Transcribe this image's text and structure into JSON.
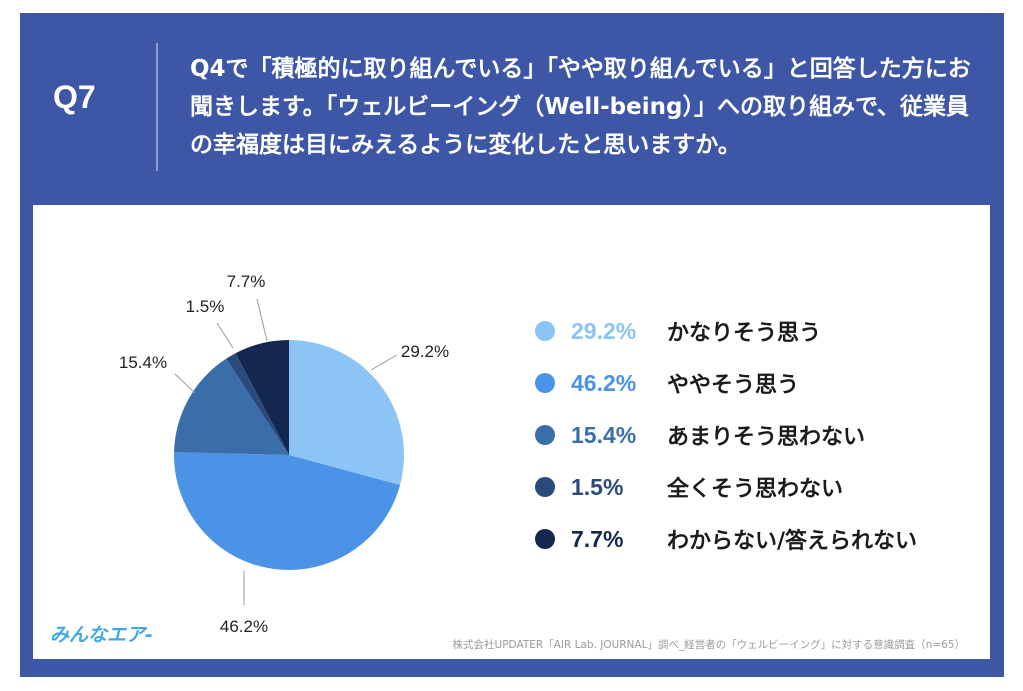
{
  "header": {
    "q_number": "Q7",
    "question": "Q4で「積極的に取り組んでいる」「やや取り組んでいる」と回答した方にお聞きします。「ウェルビーイング（Well-being）」への取り組みで、従業員の幸福度は目にみえるように変化したと思いますか。"
  },
  "chart_data": {
    "type": "pie",
    "start_angle": "12 o'clock",
    "direction": "clockwise",
    "slices": [
      {
        "label": "かなりそう思う",
        "value": 29.2,
        "display": "29.2%",
        "color": "#8cc4f5"
      },
      {
        "label": "ややそう思う",
        "value": 46.2,
        "display": "46.2%",
        "color": "#4a93e6"
      },
      {
        "label": "あまりそう思わない",
        "value": 15.4,
        "display": "15.4%",
        "color": "#3a6ea9"
      },
      {
        "label": "全くそう思わない",
        "value": 1.5,
        "display": "1.5%",
        "color": "#2b4a7c"
      },
      {
        "label": "わからない/答えられない",
        "value": 7.7,
        "display": "7.7%",
        "color": "#14284f"
      }
    ],
    "legend_placement": "right"
  },
  "footer": {
    "brand": "みんなエア-",
    "source": "株式会社UPDATER「AIR Lab. JOURNAL」調べ_経営者の「ウェルビーイング」に対する意識調査（n=65）"
  }
}
